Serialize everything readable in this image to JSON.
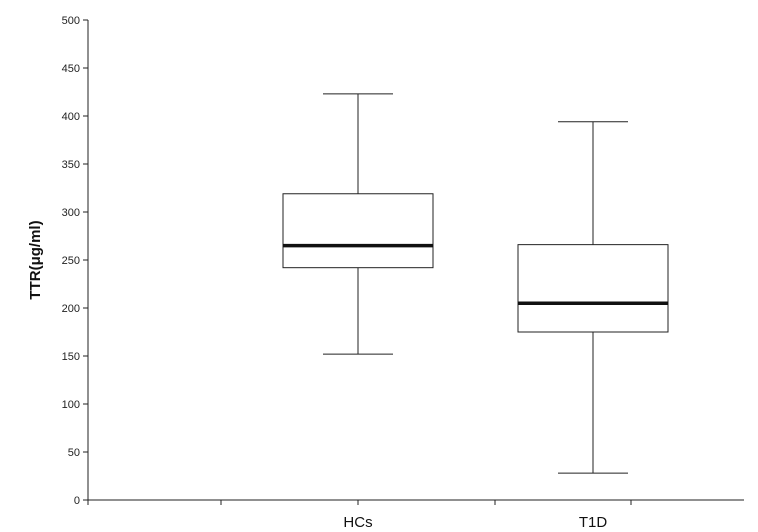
{
  "chart_data": {
    "type": "box",
    "title": "",
    "xlabel": "",
    "ylabel": "TTR(μg/ml)",
    "ylim": [
      0,
      500
    ],
    "yticks": [
      0,
      50,
      100,
      150,
      200,
      250,
      300,
      350,
      400,
      450,
      500
    ],
    "grid": false,
    "categories": [
      "HCs",
      "T1D"
    ],
    "series": [
      {
        "values": [
          {
            "min": 152,
            "q1": 242,
            "median": 265,
            "q3": 319,
            "max": 423
          },
          {
            "min": 28,
            "q1": 175,
            "median": 205,
            "q3": 266,
            "max": 394
          }
        ]
      }
    ],
    "colors": {
      "box_fill": "#ffffff",
      "stroke": "#222222",
      "median": "#111111"
    }
  }
}
